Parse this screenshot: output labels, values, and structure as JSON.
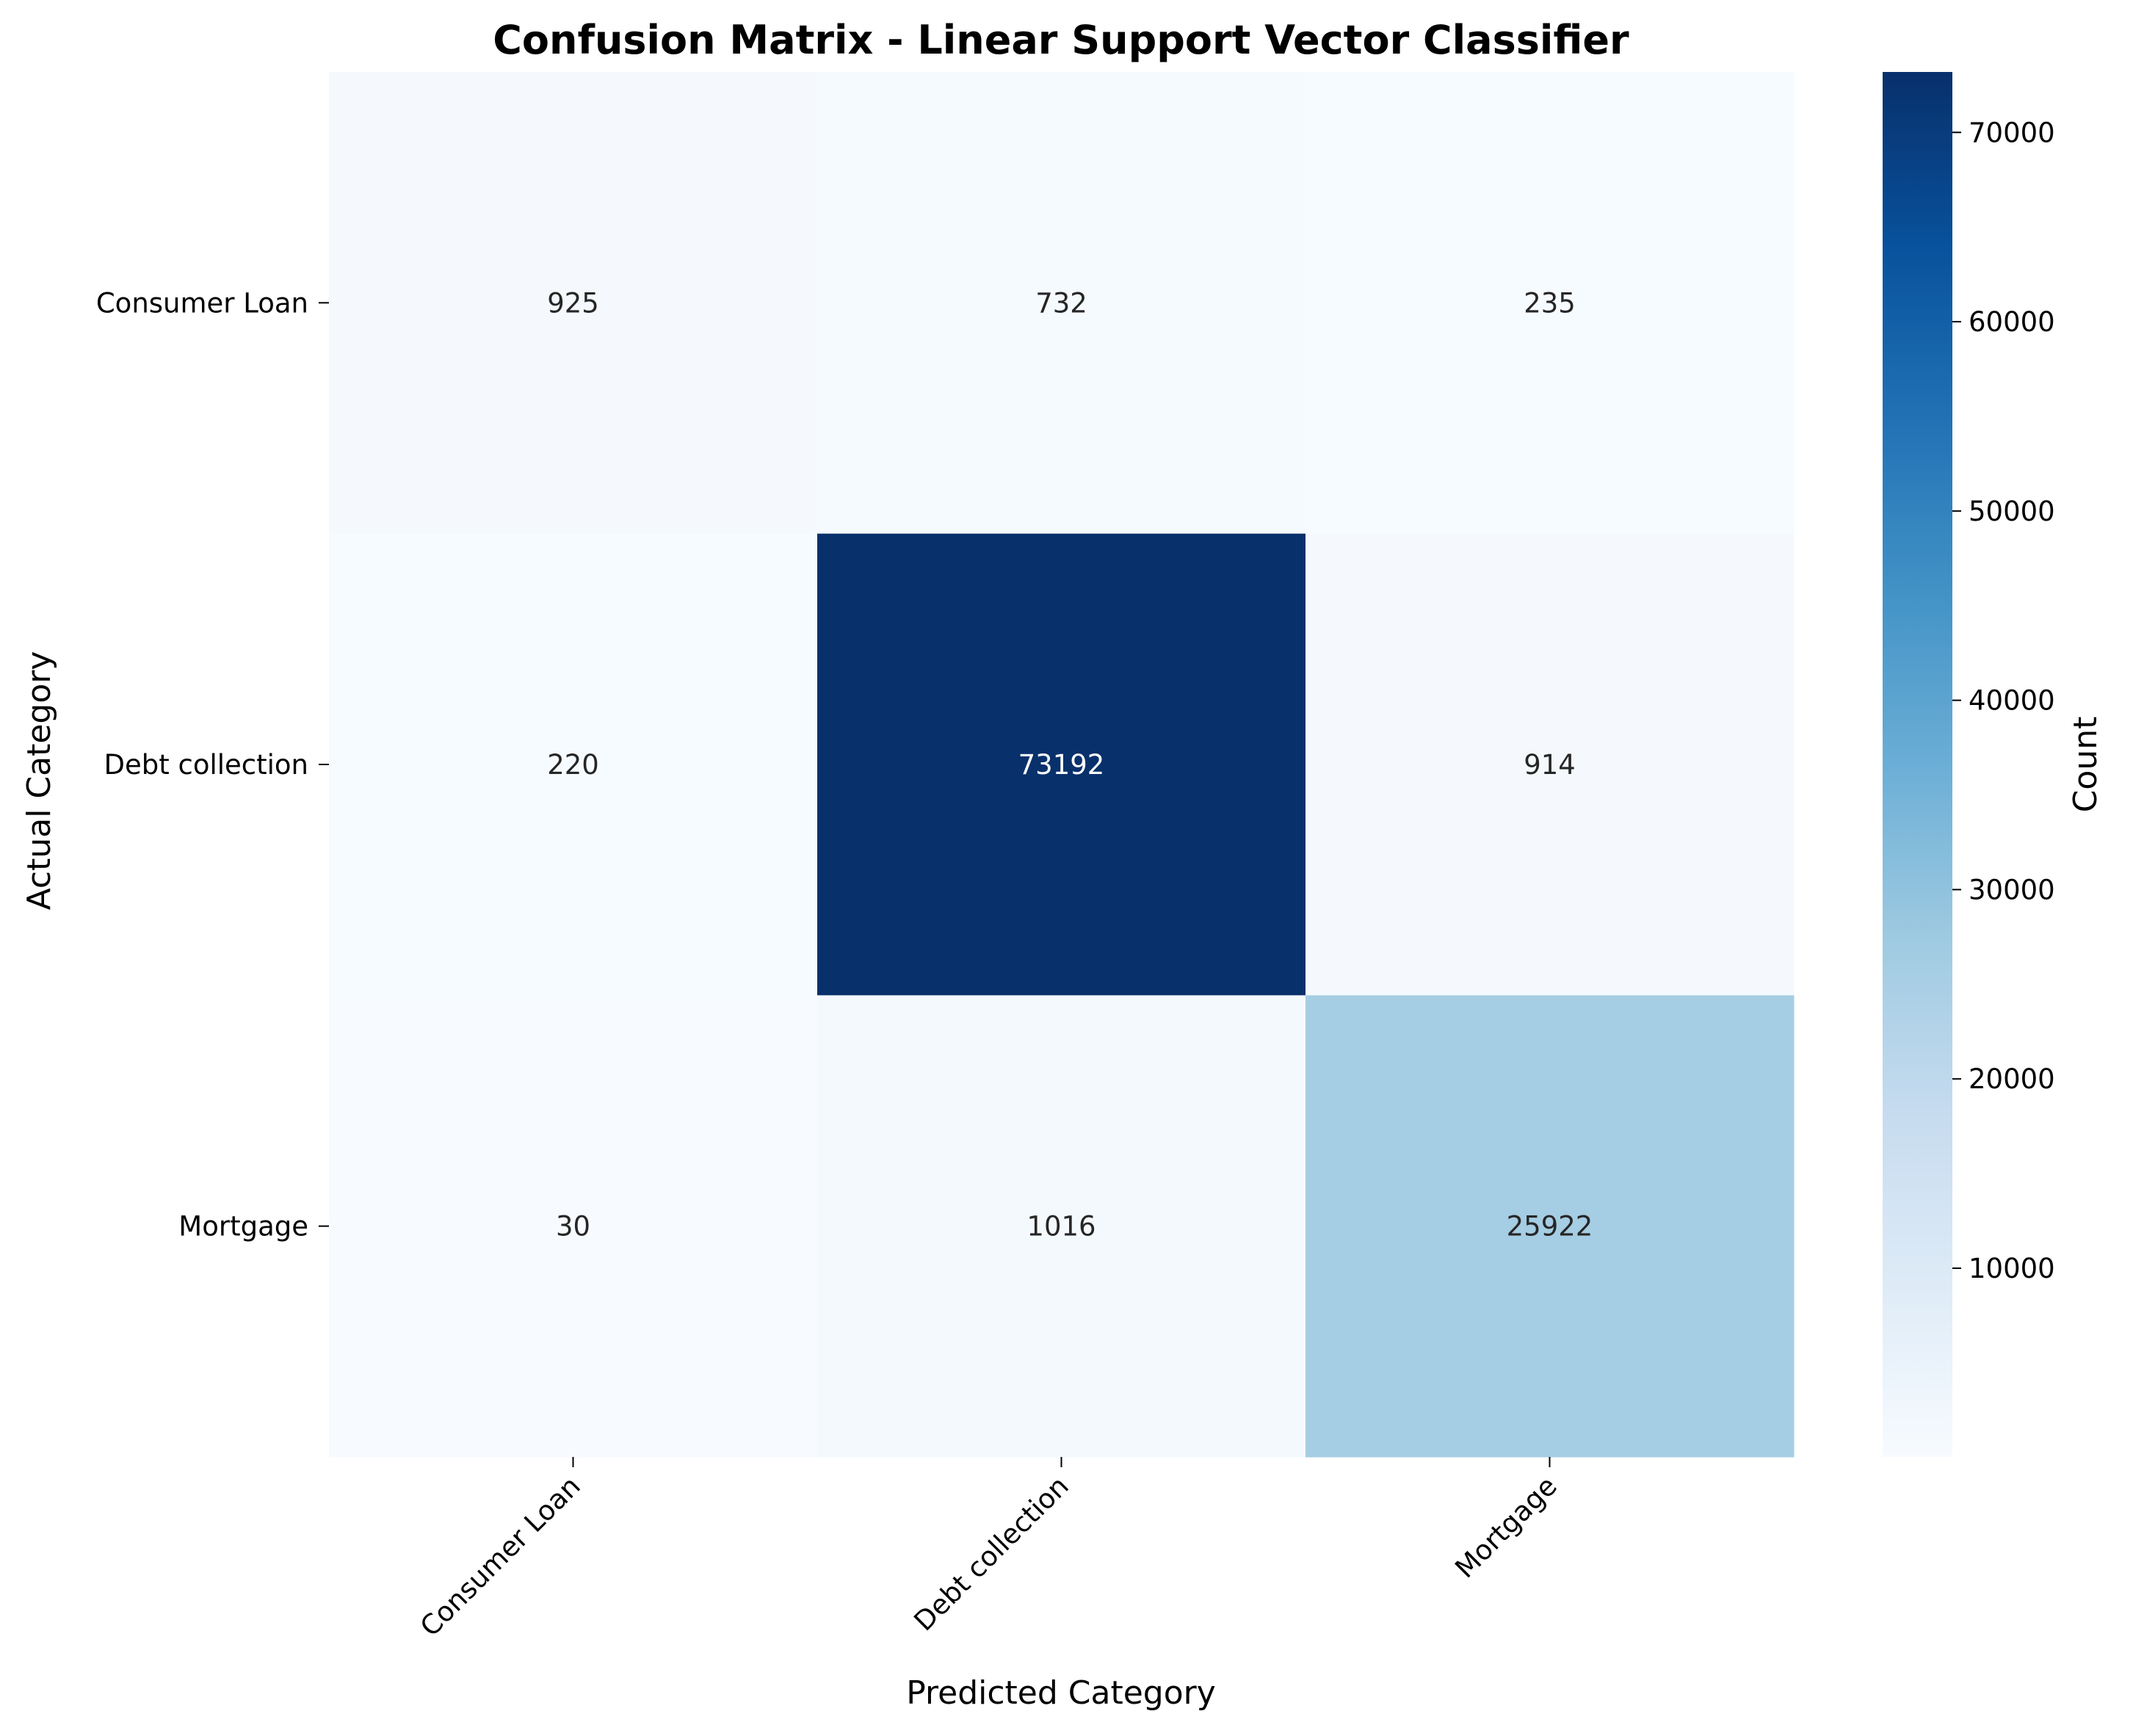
{
  "chart_data": {
    "type": "heatmap",
    "title": "Confusion Matrix - Linear Support Vector Classifier",
    "xlabel": "Predicted Category",
    "ylabel": "Actual Category",
    "x_categories": [
      "Consumer Loan",
      "Debt collection",
      "Mortgage"
    ],
    "y_categories": [
      "Consumer Loan",
      "Debt collection",
      "Mortgage"
    ],
    "values": [
      [
        925,
        732,
        235
      ],
      [
        220,
        73192,
        914
      ],
      [
        30,
        1016,
        25922
      ]
    ],
    "colormap": "Blues",
    "colormap_stops": [
      "#f7fbff",
      "#deebf7",
      "#c6dbef",
      "#9ecae1",
      "#6baed6",
      "#4292c6",
      "#2171b5",
      "#08519c",
      "#08306b"
    ],
    "value_range": [
      30,
      73192
    ],
    "colorbar": {
      "label": "Count",
      "ticks": [
        10000,
        20000,
        30000,
        40000,
        50000,
        60000,
        70000
      ]
    }
  }
}
